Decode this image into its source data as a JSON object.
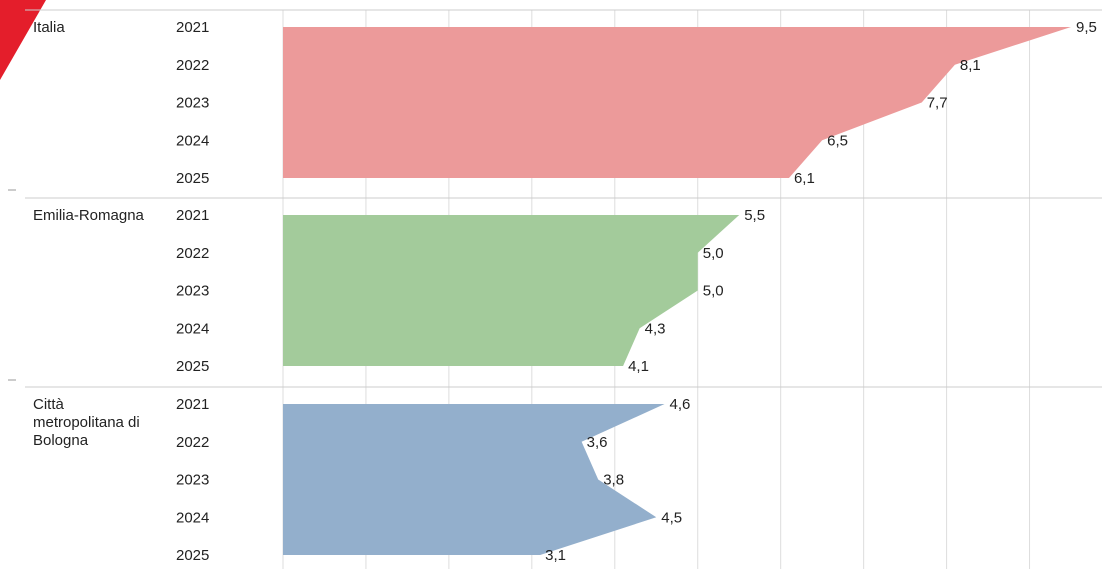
{
  "accent_color": "#e41e2b",
  "chart_data": {
    "type": "area",
    "orientation": "horizontal",
    "years": [
      "2021",
      "2022",
      "2023",
      "2024",
      "2025"
    ],
    "xlim": [
      0,
      10
    ],
    "grid": true,
    "series": [
      {
        "name": "Italia",
        "name_lines": [
          "Italia"
        ],
        "color": "#ec9a9a",
        "values": [
          9.5,
          8.1,
          7.7,
          6.5,
          6.1
        ],
        "labels": [
          "9,5",
          "8,1",
          "7,7",
          "6,5",
          "6,1"
        ]
      },
      {
        "name": "Emilia-Romagna",
        "name_lines": [
          "Emilia-Romagna"
        ],
        "color": "#a3cb9b",
        "values": [
          5.5,
          5.0,
          5.0,
          4.3,
          4.1
        ],
        "labels": [
          "5,5",
          "5,0",
          "5,0",
          "4,3",
          "4,1"
        ]
      },
      {
        "name": "Città metropolitana di Bologna",
        "name_lines": [
          "Città",
          "metropolitana di",
          "Bologna"
        ],
        "color": "#93afcc",
        "values": [
          4.6,
          3.6,
          3.8,
          4.5,
          3.1
        ],
        "labels": [
          "4,6",
          "3,6",
          "3,8",
          "4,5",
          "3,1"
        ]
      }
    ]
  }
}
